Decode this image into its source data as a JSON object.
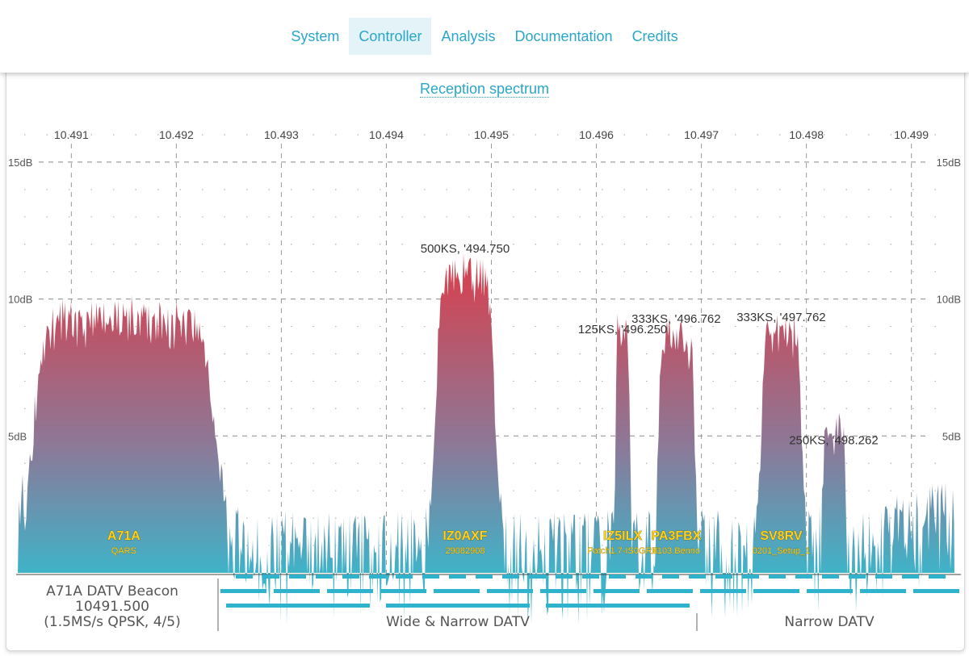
{
  "nav": {
    "items": [
      {
        "label": "System",
        "active": false
      },
      {
        "label": "Controller",
        "active": true
      },
      {
        "label": "Analysis",
        "active": false
      },
      {
        "label": "Documentation",
        "active": false
      },
      {
        "label": "Credits",
        "active": false
      }
    ]
  },
  "spectrum_title": "Reception spectrum",
  "chart_data": {
    "type": "area",
    "title": "Reception spectrum",
    "x_ticks": [
      "10.491",
      "10.492",
      "10.493",
      "10.494",
      "10.495",
      "10.496",
      "10.497",
      "10.498",
      "10.499"
    ],
    "x_tick_values": [
      10.491,
      10.492,
      10.493,
      10.494,
      10.495,
      10.496,
      10.497,
      10.498,
      10.499
    ],
    "xlim": [
      10.49049,
      10.49941
    ],
    "y_ticks": [
      {
        "value": 5,
        "label": "5dB"
      },
      {
        "value": 10,
        "label": "10dB"
      },
      {
        "value": 15,
        "label": "15dB"
      }
    ],
    "ylim": [
      0,
      16.5
    ],
    "grid": true,
    "noise_floor_db": 0.7,
    "colors": {
      "top": "#d6414f",
      "bottom": "#3fb3c8"
    },
    "signals": [
      {
        "center": 10.4915,
        "width_mhz": 1.62,
        "level_db": 8.6,
        "label": "",
        "callsign": "A71A",
        "detail": "QARS"
      },
      {
        "center": 10.49475,
        "width_mhz": 0.52,
        "level_db": 10.5,
        "label": "500KS, '494.750",
        "callsign": "IZ0AXF",
        "detail": "29082908"
      },
      {
        "center": 10.49625,
        "width_mhz": 0.13,
        "level_db": 8.0,
        "label": "125KS, '496.250",
        "callsign": "IZ5ILX",
        "detail": "Patch1.7-IS0GRX"
      },
      {
        "center": 10.49676,
        "width_mhz": 0.33,
        "level_db": 7.7,
        "label": "333KS, '496.762",
        "callsign": "PA3FBX",
        "detail": "0103.Benno"
      },
      {
        "center": 10.49776,
        "width_mhz": 0.36,
        "level_db": 8.0,
        "label": "333KS, '497.762",
        "callsign": "SV8RV",
        "detail": "0201_Setup_1"
      },
      {
        "center": 10.49826,
        "width_mhz": 0.22,
        "level_db": 3.5,
        "label": "250KS, '498.262",
        "callsign": "",
        "detail": ""
      }
    ]
  },
  "band_legend": {
    "beacon_lines": [
      "A71A DATV Beacon",
      "10491.500",
      "(1.5MS/s QPSK, 4/5)"
    ],
    "wide_narrow_label": "Wide & Narrow DATV",
    "narrow_label": "Narrow DATV"
  }
}
